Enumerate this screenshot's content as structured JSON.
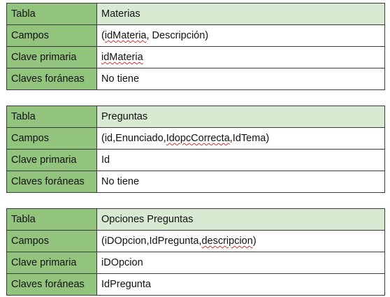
{
  "tables": [
    {
      "header": {
        "label": "Tabla",
        "value": "Materias"
      },
      "rows": [
        {
          "label": "Campos",
          "pre": "(",
          "spell": "idMateria",
          "post": ", Descripción)"
        },
        {
          "label": "Clave primaria",
          "pre": "",
          "spell": "idMateria",
          "post": ""
        },
        {
          "label": "Claves foráneas",
          "pre": "No tiene",
          "spell": "",
          "post": ""
        }
      ]
    },
    {
      "header": {
        "label": "Tabla",
        "value": "Preguntas"
      },
      "rows": [
        {
          "label": "Campos",
          "pre": "(id,Enunciado,",
          "spell": "IdopcCorrecta",
          "post": ",IdTema)"
        },
        {
          "label": "Clave primaria",
          "pre": "Id",
          "spell": "",
          "post": ""
        },
        {
          "label": "Claves foráneas",
          "pre": "No tiene",
          "spell": "",
          "post": ""
        }
      ]
    },
    {
      "header": {
        "label": "Tabla",
        "value": "Opciones Preguntas"
      },
      "rows": [
        {
          "label": "Campos",
          "pre": "(iDOpcion,IdPregunta,",
          "spell": "descripcion",
          "post": ")"
        },
        {
          "label": "Clave primaria",
          "pre": "iDOpcion",
          "spell": "",
          "post": ""
        },
        {
          "label": "Claves foráneas",
          "pre": "IdPregunta",
          "spell": "",
          "post": ""
        }
      ]
    }
  ]
}
